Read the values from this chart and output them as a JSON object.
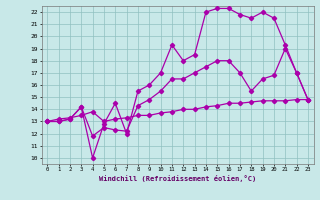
{
  "title": "",
  "xlabel": "Windchill (Refroidissement éolien,°C)",
  "xlim": [
    -0.5,
    23.5
  ],
  "ylim": [
    9.5,
    22.5
  ],
  "yticks": [
    10,
    11,
    12,
    13,
    14,
    15,
    16,
    17,
    18,
    19,
    20,
    21,
    22
  ],
  "xticks": [
    0,
    1,
    2,
    3,
    4,
    5,
    6,
    7,
    8,
    9,
    10,
    11,
    12,
    13,
    14,
    15,
    16,
    17,
    18,
    19,
    20,
    21,
    22,
    23
  ],
  "bg_color": "#c8e8e8",
  "grid_color": "#90c0c0",
  "line_color": "#aa00aa",
  "line1_x": [
    0,
    1,
    2,
    3,
    4,
    5,
    6,
    7,
    8,
    9,
    10,
    11,
    12,
    13,
    14,
    15,
    16,
    17,
    18,
    19,
    20,
    21,
    22,
    23
  ],
  "line1_y": [
    13.0,
    13.2,
    13.3,
    13.5,
    13.8,
    13.0,
    13.2,
    13.3,
    13.5,
    13.5,
    13.7,
    13.8,
    14.0,
    14.0,
    14.2,
    14.3,
    14.5,
    14.5,
    14.6,
    14.7,
    14.7,
    14.7,
    14.8,
    14.8
  ],
  "line2_x": [
    0,
    1,
    2,
    3,
    4,
    5,
    6,
    7,
    8,
    9,
    10,
    11,
    12,
    13,
    14,
    15,
    16,
    17,
    18,
    19,
    20,
    21,
    22,
    23
  ],
  "line2_y": [
    13.0,
    13.0,
    13.2,
    14.2,
    11.8,
    12.5,
    12.3,
    12.2,
    14.3,
    14.8,
    15.5,
    16.5,
    16.5,
    17.0,
    17.5,
    18.0,
    18.0,
    17.0,
    15.5,
    16.5,
    16.8,
    19.0,
    17.0,
    14.8
  ],
  "line3_x": [
    0,
    1,
    2,
    3,
    4,
    5,
    6,
    7,
    8,
    9,
    10,
    11,
    12,
    13,
    14,
    15,
    16,
    17,
    18,
    19,
    20,
    21,
    22,
    23
  ],
  "line3_y": [
    13.0,
    13.0,
    13.2,
    14.2,
    10.0,
    12.8,
    14.5,
    12.0,
    15.5,
    16.0,
    17.0,
    19.3,
    18.0,
    18.5,
    22.0,
    22.3,
    22.3,
    21.8,
    21.5,
    22.0,
    21.5,
    19.3,
    17.0,
    14.8
  ],
  "marker": "D",
  "marker_size": 2.2,
  "linewidth": 0.9
}
